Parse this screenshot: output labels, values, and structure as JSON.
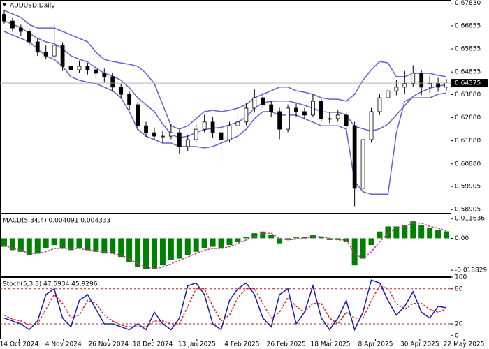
{
  "chart_data": [
    {
      "type": "candlestick",
      "title": "AUDUSD,Daily",
      "xlim": [
        -0.5,
        53.5
      ],
      "ylim": [
        0.5876,
        0.6797
      ],
      "yticks": [
        {
          "value": 0.6783,
          "label": "0.67830"
        },
        0.66855,
        0.65855,
        0.64855,
        {
          "value": 0.6388,
          "label": "0.63880"
        },
        {
          "value": 0.6288,
          "label": "0.62880"
        },
        {
          "value": 0.6188,
          "label": "0.61880"
        },
        {
          "value": 0.6088,
          "label": "0.60880"
        },
        0.59905,
        0.58905
      ],
      "last_price": 0.64375,
      "open": [
        0.6735,
        0.6706,
        0.6676,
        0.6661,
        0.6616,
        0.6571,
        0.6555,
        0.6601,
        0.651,
        0.6495,
        0.651,
        0.6495,
        0.648,
        0.6465,
        0.642,
        0.6389,
        0.6344,
        0.6253,
        0.6223,
        0.6208,
        0.6208,
        0.6223,
        0.6163,
        0.6193,
        0.6238,
        0.6269,
        0.6223,
        0.6193,
        0.6253,
        0.6269,
        0.6329,
        0.6374,
        0.6344,
        0.6314,
        0.6238,
        0.6329,
        0.6314,
        0.6299,
        0.6359,
        0.6284,
        0.6284,
        0.6299,
        0.6253,
        0.5982,
        0.6193,
        0.6314,
        0.6374,
        0.6404,
        0.642,
        0.6435,
        0.648,
        0.642,
        0.6435,
        0.642
      ],
      "high": [
        0.6752,
        0.672,
        0.669,
        0.667,
        0.663,
        0.66,
        0.669,
        0.6615,
        0.653,
        0.6535,
        0.6525,
        0.651,
        0.65,
        0.648,
        0.6435,
        0.64,
        0.6355,
        0.627,
        0.6245,
        0.623,
        0.626,
        0.6235,
        0.6215,
        0.626,
        0.63,
        0.629,
        0.624,
        0.627,
        0.63,
        0.635,
        0.641,
        0.6395,
        0.636,
        0.633,
        0.6345,
        0.635,
        0.633,
        0.639,
        0.637,
        0.631,
        0.632,
        0.631,
        0.627,
        0.621,
        0.633,
        0.639,
        0.642,
        0.645,
        0.649,
        0.6515,
        0.6495,
        0.647,
        0.646,
        0.6455
      ],
      "low": [
        0.6695,
        0.666,
        0.664,
        0.66,
        0.6555,
        0.654,
        0.6545,
        0.649,
        0.647,
        0.648,
        0.6475,
        0.646,
        0.644,
        0.64,
        0.637,
        0.632,
        0.6235,
        0.6205,
        0.619,
        0.618,
        0.6195,
        0.613,
        0.6145,
        0.618,
        0.6225,
        0.62,
        0.609,
        0.618,
        0.6235,
        0.6255,
        0.631,
        0.633,
        0.629,
        0.6195,
        0.6225,
        0.629,
        0.628,
        0.629,
        0.627,
        0.6265,
        0.627,
        0.6225,
        0.5905,
        0.596,
        0.618,
        0.63,
        0.6355,
        0.6385,
        0.639,
        0.642,
        0.6385,
        0.6395,
        0.64,
        0.6405
      ],
      "close": [
        0.6706,
        0.6676,
        0.6661,
        0.6616,
        0.6571,
        0.6555,
        0.6601,
        0.651,
        0.6495,
        0.651,
        0.6495,
        0.648,
        0.6465,
        0.642,
        0.6389,
        0.6344,
        0.6253,
        0.6223,
        0.6208,
        0.6208,
        0.6223,
        0.6163,
        0.6193,
        0.6238,
        0.6269,
        0.6223,
        0.6193,
        0.6253,
        0.6269,
        0.6329,
        0.6374,
        0.6344,
        0.6314,
        0.6238,
        0.6329,
        0.6314,
        0.6299,
        0.6359,
        0.6284,
        0.6284,
        0.6299,
        0.6253,
        0.5982,
        0.6193,
        0.6314,
        0.6374,
        0.6404,
        0.642,
        0.6435,
        0.648,
        0.642,
        0.6435,
        0.642,
        0.64375
      ],
      "series": [
        {
          "color": "#6b5fd6",
          "values": [
            0.6752,
            0.6737,
            0.6722,
            0.6691,
            0.6676,
            0.6676,
            0.6676,
            0.6661,
            0.6646,
            0.6631,
            0.6616,
            0.6571,
            0.654,
            0.6531,
            0.6525,
            0.6519,
            0.651,
            0.648,
            0.6435,
            0.6344,
            0.6253,
            0.6238,
            0.6253,
            0.6284,
            0.6314,
            0.632,
            0.6314,
            0.632,
            0.6329,
            0.6344,
            0.6374,
            0.6389,
            0.6404,
            0.642,
            0.642,
            0.6404,
            0.6398,
            0.6389,
            0.6374,
            0.6368,
            0.6368,
            0.6359,
            0.6389,
            0.645,
            0.6495,
            0.6531,
            0.6525,
            0.6465,
            0.6465,
            0.648,
            0.648,
            0.648,
            0.6471,
            0.6465
          ]
        },
        {
          "color": "#6b5fd6",
          "values": [
            0.6707,
            0.6692,
            0.6677,
            0.6654,
            0.6631,
            0.6616,
            0.6608,
            0.6586,
            0.6556,
            0.6541,
            0.6529,
            0.6503,
            0.648,
            0.6468,
            0.645,
            0.6417,
            0.6374,
            0.6344,
            0.6314,
            0.6261,
            0.6216,
            0.6201,
            0.6208,
            0.6224,
            0.6236,
            0.6242,
            0.6246,
            0.6257,
            0.6269,
            0.6291,
            0.6329,
            0.6352,
            0.6359,
            0.636,
            0.636,
            0.6352,
            0.6341,
            0.6329,
            0.6314,
            0.6311,
            0.6311,
            0.6299,
            0.625,
            0.624,
            0.623,
            0.624,
            0.626,
            0.63,
            0.634,
            0.638,
            0.64,
            0.6415,
            0.6425,
            0.643
          ]
        },
        {
          "color": "#6b5fd6",
          "values": [
            0.6661,
            0.6646,
            0.6631,
            0.6616,
            0.6586,
            0.6555,
            0.654,
            0.651,
            0.6465,
            0.645,
            0.6441,
            0.6435,
            0.642,
            0.6404,
            0.6374,
            0.6314,
            0.6238,
            0.6208,
            0.6193,
            0.6178,
            0.6178,
            0.6163,
            0.6163,
            0.6163,
            0.6157,
            0.6163,
            0.6178,
            0.6193,
            0.6208,
            0.6238,
            0.6284,
            0.6314,
            0.6314,
            0.6299,
            0.6299,
            0.6299,
            0.6284,
            0.6269,
            0.6253,
            0.6253,
            0.6253,
            0.6238,
            0.6012,
            0.5967,
            0.5957,
            0.5957,
            0.5957,
            0.6223,
            0.6359,
            0.6374,
            0.6374,
            0.6374,
            0.6389,
            0.6395
          ]
        }
      ]
    },
    {
      "type": "macd",
      "title": "MACD(5,34,4) 0.004091 0.004333",
      "xlim": [
        -0.5,
        53.5
      ],
      "ylim": [
        -0.0225,
        0.0146
      ],
      "yticks": [
        0.011636,
        {
          "value": 0,
          "label": "0.00"
        },
        -0.018829
      ],
      "histogram": {
        "color": "#008000",
        "values": [
          -0.005,
          -0.007,
          -0.008,
          -0.01,
          -0.009,
          -0.006,
          -0.004,
          -0.006,
          -0.007,
          -0.006,
          -0.007,
          -0.008,
          -0.009,
          -0.009,
          -0.011,
          -0.014,
          -0.017,
          -0.018,
          -0.018,
          -0.016,
          -0.013,
          -0.012,
          -0.01,
          -0.008,
          -0.006,
          -0.005,
          -0.006,
          -0.004,
          -0.002,
          0.001,
          0.003,
          0.004,
          0.002,
          -0.003,
          -0.001,
          0.0005,
          0.001,
          0.002,
          0.001,
          -0.001,
          -0.001,
          -0.002,
          -0.016,
          -0.012,
          -0.004,
          0.004,
          0.007,
          0.007,
          0.008,
          0.01,
          0.008,
          0.006,
          0.005,
          0.004091
        ]
      },
      "signal": {
        "color": "#d0309a",
        "values": [
          -0.004,
          -0.006,
          -0.007,
          -0.009,
          -0.009,
          -0.008,
          -0.006,
          -0.006,
          -0.006,
          -0.006,
          -0.007,
          -0.007,
          -0.008,
          -0.009,
          -0.01,
          -0.012,
          -0.015,
          -0.017,
          -0.018,
          -0.017,
          -0.015,
          -0.013,
          -0.011,
          -0.009,
          -0.007,
          -0.006,
          -0.006,
          -0.005,
          -0.003,
          -0.001,
          0.001,
          0.003,
          0.003,
          0.0,
          -0.001,
          -0.0005,
          0.0,
          0.001,
          0.001,
          0.0,
          -0.001,
          -0.001,
          -0.009,
          -0.012,
          -0.008,
          -0.002,
          0.003,
          0.006,
          0.007,
          0.009,
          0.009,
          0.007,
          0.006,
          0.004333
        ]
      }
    },
    {
      "type": "stochastic",
      "title": "Stoch(5,3,3) 47.5934 45.9296",
      "xlim": [
        -0.5,
        53.5
      ],
      "ylim": [
        -5,
        100
      ],
      "yticks": [
        100,
        80,
        20,
        0
      ],
      "levels": [
        80,
        20
      ],
      "xticks": [
        {
          "value": 1.8,
          "label": "14 Oct 2024"
        },
        {
          "value": 7.1,
          "label": "4 Nov 2024"
        },
        {
          "value": 12.5,
          "label": "26 Nov 2024"
        },
        {
          "value": 17.8,
          "label": "18 Dec 2024"
        },
        {
          "value": 23.1,
          "label": "13 Jan 2025"
        },
        {
          "value": 28.5,
          "label": "4 Feb 2025"
        },
        {
          "value": 33.8,
          "label": "26 Feb 2025"
        },
        {
          "value": 39.1,
          "label": "18 Mar 2025"
        },
        {
          "value": 44.5,
          "label": "8 Apr 2025"
        },
        {
          "value": 49.8,
          "label": "30 Apr 2025"
        },
        {
          "value": 55.1,
          "label": "22 May 2025"
        }
      ],
      "main": {
        "color": "#1a1ab8",
        "values": [
          30,
          25,
          20,
          10,
          25,
          70,
          80,
          30,
          15,
          60,
          70,
          45,
          20,
          20,
          15,
          10,
          20,
          10,
          40,
          20,
          10,
          30,
          85,
          90,
          70,
          20,
          10,
          60,
          80,
          90,
          70,
          30,
          15,
          70,
          80,
          20,
          40,
          85,
          30,
          10,
          30,
          60,
          10,
          40,
          95,
          90,
          60,
          35,
          50,
          75,
          40,
          30,
          50,
          47.5934
        ]
      },
      "signal": {
        "color": "#e02020",
        "values": [
          35,
          28,
          25,
          18,
          20,
          45,
          70,
          55,
          30,
          35,
          60,
          55,
          35,
          25,
          18,
          15,
          15,
          15,
          25,
          25,
          20,
          20,
          50,
          80,
          80,
          50,
          25,
          35,
          65,
          80,
          80,
          55,
          30,
          40,
          65,
          50,
          40,
          55,
          55,
          30,
          20,
          40,
          30,
          30,
          60,
          85,
          80,
          55,
          45,
          55,
          55,
          45,
          40,
          45.9296
        ]
      }
    }
  ]
}
